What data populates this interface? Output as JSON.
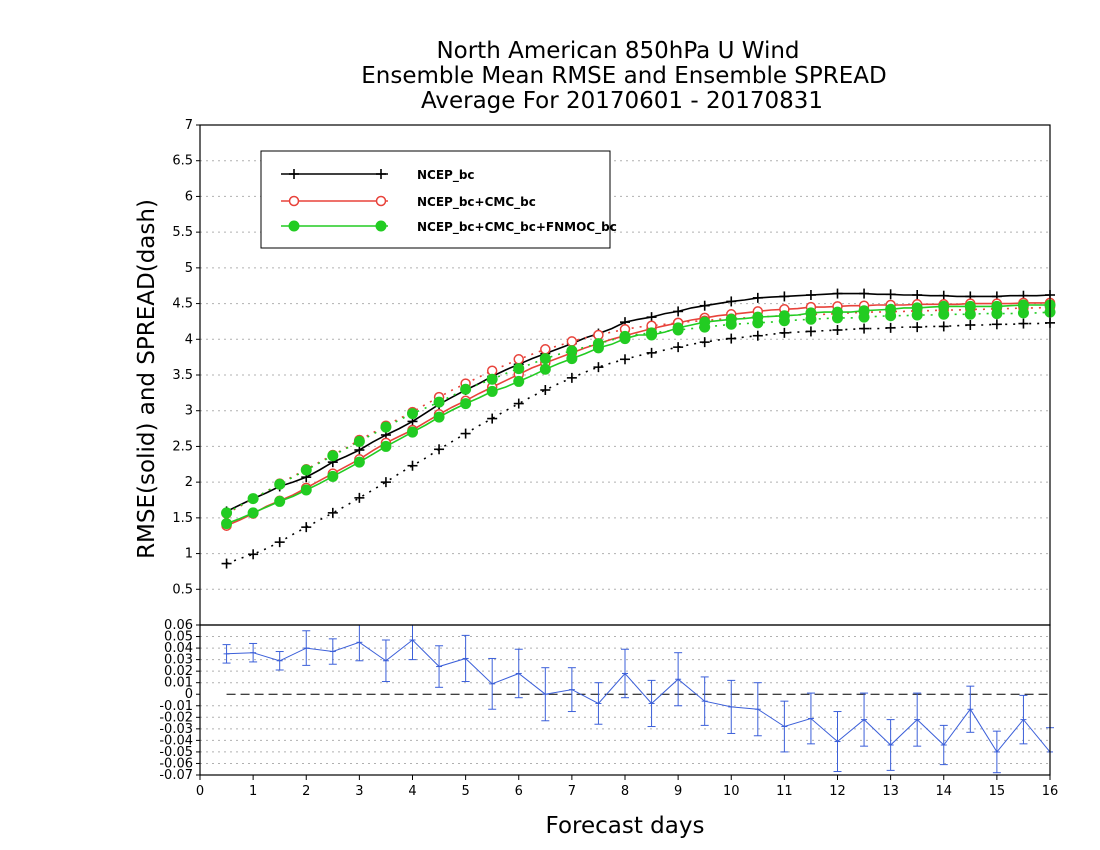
{
  "chart_data": {
    "type": "line",
    "title": [
      "North American 850hPa U Wind",
      "Ensemble Mean RMSE and Ensemble SPREAD",
      "Average For 20170601 - 20170831"
    ],
    "xlabel": "Forecast days",
    "ylabel": "RMSE(solid) and SPREAD(dash)",
    "xlim": [
      0,
      16
    ],
    "ylim": [
      0,
      7
    ],
    "x_ticks": [
      "0",
      "1",
      "2",
      "3",
      "4",
      "5",
      "6",
      "7",
      "8",
      "9",
      "10",
      "11",
      "12",
      "13",
      "14",
      "15",
      "16"
    ],
    "y_ticks": [
      "0.5",
      "1",
      "1.5",
      "2",
      "2.5",
      "3",
      "3.5",
      "4",
      "4.5",
      "5",
      "5.5",
      "6",
      "6.5",
      "7"
    ],
    "grid": true,
    "legend_position": "top-left",
    "x": [
      0.5,
      0.75,
      1.0,
      1.25,
      1.5,
      1.75,
      2.0,
      2.25,
      2.5,
      2.75,
      3.0,
      3.25,
      3.5,
      3.75,
      4.0,
      4.25,
      4.5,
      4.75,
      5.0,
      5.25,
      5.5,
      5.75,
      6.0,
      6.25,
      6.5,
      6.75,
      7.0,
      7.25,
      7.5,
      7.75,
      8.0,
      8.25,
      8.5,
      8.75,
      9.0,
      9.25,
      9.5,
      9.75,
      10.0,
      10.25,
      10.5,
      10.75,
      11.0,
      11.25,
      11.5,
      11.75,
      12.0,
      12.25,
      12.5,
      12.75,
      13.0,
      13.25,
      13.5,
      13.75,
      14.0,
      14.25,
      14.5,
      14.75,
      15.0,
      15.25,
      15.5,
      15.75,
      16.0
    ],
    "series": [
      {
        "name": "NCEP_bc",
        "style": "solid",
        "color": "#000000",
        "marker": "plus",
        "values": [
          1.59,
          1.68,
          1.77,
          1.85,
          1.94,
          2.0,
          2.07,
          2.17,
          2.28,
          2.36,
          2.45,
          2.56,
          2.66,
          2.75,
          2.85,
          2.97,
          3.09,
          3.19,
          3.29,
          3.38,
          3.48,
          3.57,
          3.65,
          3.73,
          3.8,
          3.87,
          3.94,
          4.02,
          4.08,
          4.15,
          4.24,
          4.28,
          4.31,
          4.36,
          4.39,
          4.44,
          4.47,
          4.5,
          4.53,
          4.55,
          4.58,
          4.59,
          4.6,
          4.61,
          4.62,
          4.63,
          4.64,
          4.64,
          4.64,
          4.63,
          4.63,
          4.62,
          4.62,
          4.61,
          4.61,
          4.6,
          4.6,
          4.6,
          4.6,
          4.61,
          4.61,
          4.61,
          4.62
        ]
      },
      {
        "name": "SPREAD NCEP_bc",
        "style": "dash",
        "color": "#000000",
        "marker": "plus",
        "values": [
          0.86,
          0.93,
          0.99,
          1.07,
          1.16,
          1.27,
          1.37,
          1.47,
          1.57,
          1.67,
          1.78,
          1.89,
          2.0,
          2.12,
          2.23,
          2.34,
          2.46,
          2.57,
          2.68,
          2.79,
          2.89,
          3.0,
          3.1,
          3.2,
          3.29,
          3.38,
          3.46,
          3.54,
          3.61,
          3.67,
          3.72,
          3.77,
          3.81,
          3.85,
          3.89,
          3.93,
          3.96,
          3.99,
          4.01,
          4.03,
          4.05,
          4.07,
          4.09,
          4.1,
          4.11,
          4.12,
          4.13,
          4.14,
          4.15,
          4.15,
          4.16,
          4.17,
          4.17,
          4.18,
          4.18,
          4.19,
          4.2,
          4.2,
          4.21,
          4.21,
          4.22,
          4.22,
          4.23
        ]
      },
      {
        "name": "NCEP_bc+CMC_bc",
        "style": "solid",
        "color": "#e8423a",
        "marker": "open-circle",
        "values": [
          1.39,
          1.47,
          1.56,
          1.66,
          1.74,
          1.82,
          1.92,
          2.02,
          2.12,
          2.22,
          2.32,
          2.44,
          2.55,
          2.64,
          2.73,
          2.84,
          2.95,
          3.05,
          3.14,
          3.24,
          3.33,
          3.42,
          3.51,
          3.6,
          3.67,
          3.74,
          3.81,
          3.88,
          3.94,
          4.0,
          4.05,
          4.1,
          4.15,
          4.19,
          4.23,
          4.27,
          4.3,
          4.33,
          4.35,
          4.37,
          4.39,
          4.41,
          4.42,
          4.43,
          4.45,
          4.45,
          4.46,
          4.47,
          4.47,
          4.48,
          4.48,
          4.48,
          4.49,
          4.49,
          4.49,
          4.49,
          4.5,
          4.5,
          4.5,
          4.5,
          4.51,
          4.51,
          4.51
        ]
      },
      {
        "name": "SPREAD NCEP_bc+CMC_bc",
        "style": "dash",
        "color": "#e8423a",
        "marker": "open-circle",
        "values": [
          1.56,
          1.66,
          1.77,
          1.87,
          1.98,
          2.08,
          2.18,
          2.28,
          2.38,
          2.48,
          2.59,
          2.69,
          2.79,
          2.89,
          2.98,
          3.09,
          3.19,
          3.29,
          3.38,
          3.47,
          3.56,
          3.64,
          3.72,
          3.79,
          3.86,
          3.91,
          3.97,
          4.02,
          4.06,
          4.1,
          4.14,
          4.17,
          4.19,
          4.21,
          4.23,
          4.25,
          4.26,
          4.28,
          4.29,
          4.3,
          4.31,
          4.32,
          4.33,
          4.34,
          4.35,
          4.35,
          4.36,
          4.37,
          4.38,
          4.38,
          4.39,
          4.39,
          4.4,
          4.4,
          4.41,
          4.41,
          4.42,
          4.42,
          4.43,
          4.43,
          4.44,
          4.44,
          4.45
        ]
      },
      {
        "name": "NCEP_bc+CMC_bc+FNMOC_bc",
        "style": "solid",
        "color": "#22cc22",
        "marker": "filled-circle",
        "values": [
          1.42,
          1.49,
          1.57,
          1.65,
          1.73,
          1.8,
          1.89,
          1.98,
          2.08,
          2.18,
          2.28,
          2.39,
          2.5,
          2.6,
          2.7,
          2.8,
          2.91,
          3.01,
          3.1,
          3.18,
          3.27,
          3.33,
          3.41,
          3.49,
          3.58,
          3.66,
          3.73,
          3.8,
          3.88,
          3.93,
          4.01,
          4.06,
          4.06,
          4.1,
          4.16,
          4.2,
          4.24,
          4.26,
          4.28,
          4.29,
          4.31,
          4.32,
          4.33,
          4.34,
          4.37,
          4.38,
          4.38,
          4.38,
          4.4,
          4.41,
          4.42,
          4.44,
          4.44,
          4.45,
          4.46,
          4.46,
          4.46,
          4.46,
          4.46,
          4.47,
          4.48,
          4.48,
          4.48
        ]
      },
      {
        "name": "SPREAD NCEP_bc+CMC_bc+FNMOC_bc",
        "style": "dash",
        "color": "#22cc22",
        "marker": "filled-circle",
        "values": [
          1.57,
          1.67,
          1.77,
          1.87,
          1.97,
          2.07,
          2.17,
          2.27,
          2.37,
          2.47,
          2.57,
          2.67,
          2.77,
          2.87,
          2.96,
          3.04,
          3.12,
          3.21,
          3.3,
          3.37,
          3.44,
          3.52,
          3.59,
          3.66,
          3.73,
          3.79,
          3.84,
          3.89,
          3.94,
          3.99,
          4.04,
          4.07,
          4.09,
          4.11,
          4.13,
          4.15,
          4.17,
          4.19,
          4.21,
          4.22,
          4.23,
          4.24,
          4.26,
          4.27,
          4.28,
          4.29,
          4.3,
          4.3,
          4.31,
          4.32,
          4.33,
          4.33,
          4.34,
          4.34,
          4.35,
          4.35,
          4.35,
          4.36,
          4.36,
          4.36,
          4.37,
          4.37,
          4.38
        ]
      }
    ],
    "difference_panel": {
      "ylim": [
        -0.07,
        0.06
      ],
      "y_ticks": [
        "0.06",
        "0.05",
        "0.04",
        "0.03",
        "0.02",
        "0.01",
        "0",
        "-0.01",
        "-0.02",
        "-0.03",
        "-0.04",
        "-0.05",
        "-0.06",
        "-0.07"
      ],
      "color": "#3b5fd9",
      "x": [
        0.5,
        1.0,
        1.5,
        2.0,
        2.5,
        3.0,
        3.5,
        4.0,
        4.5,
        5.0,
        5.5,
        6.0,
        6.5,
        7.0,
        7.5,
        8.0,
        8.5,
        9.0,
        9.5,
        10.0,
        10.5,
        11.0,
        11.5,
        12.0,
        12.5,
        13.0,
        13.5,
        14.0,
        14.5,
        15.0,
        15.5,
        16.0
      ],
      "values": [
        0.035,
        0.036,
        0.029,
        0.04,
        0.037,
        0.045,
        0.029,
        0.047,
        0.024,
        0.031,
        0.009,
        0.018,
        0.0,
        0.004,
        -0.008,
        0.018,
        -0.008,
        0.013,
        -0.006,
        -0.011,
        -0.013,
        -0.028,
        -0.021,
        -0.041,
        -0.022,
        -0.044,
        -0.022,
        -0.044,
        -0.013,
        -0.05,
        -0.022,
        -0.05
      ],
      "errors": [
        0.008,
        0.008,
        0.008,
        0.015,
        0.011,
        0.016,
        0.018,
        0.017,
        0.018,
        0.02,
        0.022,
        0.021,
        0.023,
        0.019,
        0.018,
        0.021,
        0.02,
        0.023,
        0.021,
        0.023,
        0.023,
        0.022,
        0.022,
        0.026,
        0.023,
        0.022,
        0.023,
        0.017,
        0.02,
        0.018,
        0.021,
        0.021
      ]
    }
  }
}
